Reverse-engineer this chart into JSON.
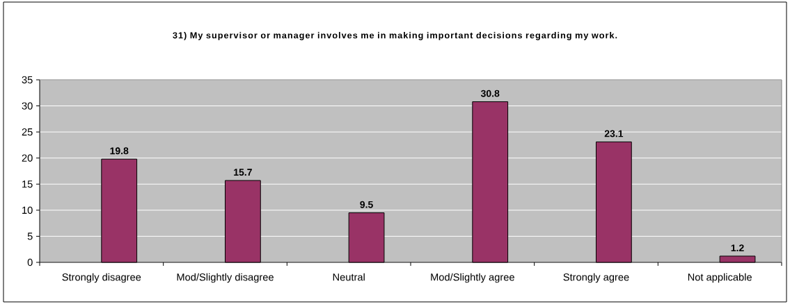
{
  "chart_data": {
    "type": "bar",
    "title": "31) My supervisor or manager involves me in making important decisions regarding my work.",
    "categories": [
      "Strongly disagree",
      "Mod/Slightly disagree",
      "Neutral",
      "Mod/Slightly agree",
      "Strongly agree",
      "Not applicable"
    ],
    "values": [
      19.8,
      15.7,
      9.5,
      30.8,
      23.1,
      1.2
    ],
    "color": "#993366",
    "ylim": [
      0,
      35
    ],
    "yticks": [
      0,
      5,
      10,
      15,
      20,
      25,
      30,
      35
    ],
    "grid": "y",
    "data_labels": true
  }
}
